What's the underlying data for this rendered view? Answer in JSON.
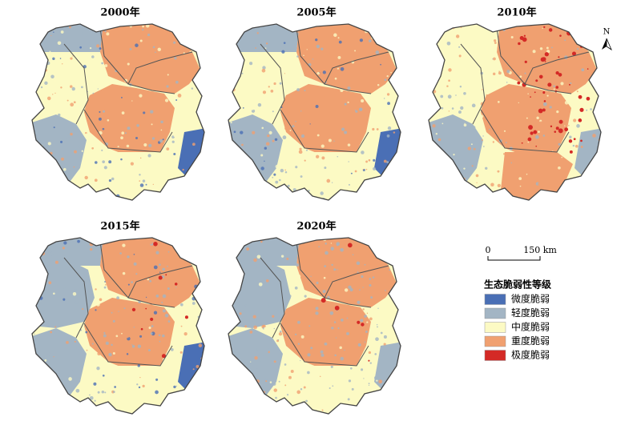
{
  "panels": [
    {
      "title": "2000年"
    },
    {
      "title": "2005年"
    },
    {
      "title": "2010年"
    },
    {
      "title": "2015年"
    },
    {
      "title": "2020年"
    }
  ],
  "north": "N",
  "scale_bar": {
    "start": "0",
    "end": "150 km"
  },
  "legend": {
    "title": "生态脆弱性等级",
    "items": [
      {
        "label": "微度脆弱",
        "color": "#4a6fb5"
      },
      {
        "label": "轻度脆弱",
        "color": "#a3b5c4"
      },
      {
        "label": "中度脆弱",
        "color": "#fcfac4"
      },
      {
        "label": "重度脆弱",
        "color": "#f0a070"
      },
      {
        "label": "极度脆弱",
        "color": "#d42a26"
      }
    ]
  }
}
